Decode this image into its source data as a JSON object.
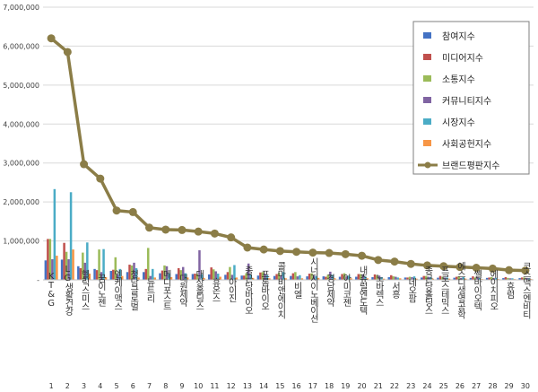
{
  "chart_data": {
    "type": "bar",
    "ylim": [
      0,
      7000000
    ],
    "yticks": [
      0,
      1000000,
      2000000,
      3000000,
      4000000,
      5000000,
      6000000,
      7000000
    ],
    "ytick_labels": [
      "-",
      "1,000,000",
      "2,000,000",
      "3,000,000",
      "4,000,000",
      "5,000,000",
      "6,000,000",
      "7,000,000"
    ],
    "ranks": [
      "1",
      "2",
      "3",
      "4",
      "5",
      "6",
      "7",
      "8",
      "9",
      "10",
      "11",
      "12",
      "13",
      "14",
      "15",
      "16",
      "17",
      "18",
      "19",
      "20",
      "21",
      "22",
      "23",
      "24",
      "25",
      "26",
      "27",
      "28",
      "29",
      "30"
    ],
    "categories": [
      "KT&G",
      "LG생활건강",
      "헬릭스미스",
      "꿈이노젠",
      "엔케이맥스",
      "청담글로벌",
      "뉴트리",
      "메디포스트",
      "대원제약",
      "대상홀딩스",
      "휴온스",
      "아이진",
      "종근당바이오",
      "프롬바이오",
      "콜마비앤에이치",
      "비엘",
      "시너지이노베이션",
      "경남제약",
      "아미코젠",
      "내츄럴엔도텍",
      "노바렉스",
      "서흥",
      "네오팜",
      "종근당홀딩스",
      "프로스테믹스",
      "에스디생명공학",
      "쎌바이오텍",
      "에이치피오",
      "휴럼",
      "코스맥스엔비티"
    ],
    "series": [
      {
        "name": "참여지수",
        "color": "#4472c4",
        "values": [
          500000,
          520000,
          350000,
          280000,
          230000,
          200000,
          200000,
          170000,
          150000,
          150000,
          140000,
          130000,
          110000,
          110000,
          100000,
          100000,
          90000,
          90000,
          80000,
          80000,
          70000,
          70000,
          60000,
          60000,
          55000,
          55000,
          50000,
          50000,
          45000,
          45000
        ]
      },
      {
        "name": "미디어지수",
        "color": "#c0504d",
        "values": [
          1050000,
          950000,
          300000,
          250000,
          260000,
          390000,
          280000,
          240000,
          300000,
          160000,
          320000,
          200000,
          110000,
          190000,
          150000,
          170000,
          160000,
          80000,
          150000,
          150000,
          140000,
          120000,
          60000,
          100000,
          100000,
          80000,
          90000,
          60000,
          70000,
          60000
        ]
      },
      {
        "name": "소통지수",
        "color": "#9bbb59",
        "values": [
          1050000,
          720000,
          700000,
          780000,
          580000,
          370000,
          820000,
          370000,
          250000,
          150000,
          270000,
          330000,
          170000,
          200000,
          180000,
          200000,
          170000,
          130000,
          170000,
          150000,
          120000,
          90000,
          80000,
          100000,
          80000,
          90000,
          60000,
          70000,
          50000,
          60000
        ]
      },
      {
        "name": "커뮤니티지수",
        "color": "#8064a2",
        "values": [
          530000,
          530000,
          440000,
          200000,
          140000,
          440000,
          100000,
          350000,
          330000,
          760000,
          220000,
          130000,
          420000,
          160000,
          120000,
          90000,
          110000,
          210000,
          90000,
          140000,
          110000,
          80000,
          70000,
          80000,
          60000,
          50000,
          70000,
          50000,
          40000,
          50000
        ]
      },
      {
        "name": "시장지수",
        "color": "#4bacc6",
        "values": [
          2330000,
          2250000,
          960000,
          790000,
          280000,
          300000,
          280000,
          170000,
          170000,
          140000,
          160000,
          380000,
          130000,
          120000,
          200000,
          120000,
          100000,
          130000,
          110000,
          90000,
          70000,
          60000,
          90000,
          70000,
          60000,
          70000,
          50000,
          50000,
          40000,
          40000
        ]
      },
      {
        "name": "사회공헌지수",
        "color": "#f79646",
        "values": [
          620000,
          780000,
          160000,
          70000,
          100000,
          60000,
          60000,
          70000,
          60000,
          50000,
          80000,
          60000,
          50000,
          40000,
          40000,
          40000,
          50000,
          40000,
          40000,
          40000,
          30000,
          40000,
          30000,
          30000,
          30000,
          30000,
          20000,
          20000,
          20000,
          20000
        ]
      }
    ],
    "line": {
      "name": "브랜드평판지수",
      "color": "#8b7d47",
      "values": [
        6200000,
        5850000,
        2970000,
        2600000,
        1780000,
        1740000,
        1340000,
        1290000,
        1280000,
        1240000,
        1190000,
        1090000,
        830000,
        780000,
        740000,
        720000,
        700000,
        690000,
        660000,
        620000,
        510000,
        470000,
        410000,
        370000,
        350000,
        330000,
        310000,
        290000,
        250000,
        240000
      ]
    },
    "grid": true,
    "legend_position": "top-right"
  }
}
